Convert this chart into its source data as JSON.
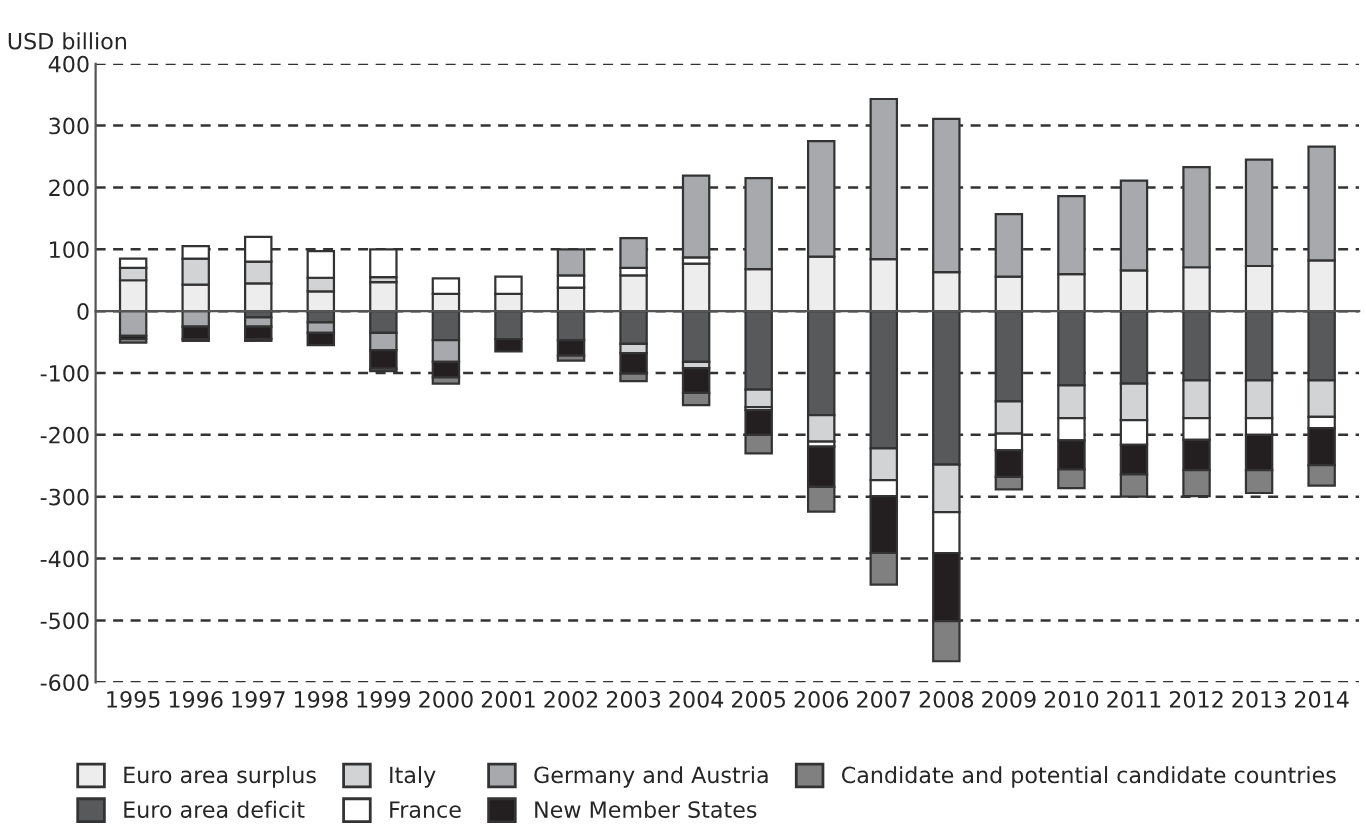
{
  "chart_data": {
    "type": "bar",
    "stacked": true,
    "ylabel": "USD billion",
    "categories": [
      "1995",
      "1996",
      "1997",
      "1998",
      "1999",
      "2000",
      "2001",
      "2002",
      "2003",
      "2004",
      "2005",
      "2006",
      "2007",
      "2008",
      "2009",
      "2010",
      "2011",
      "2012",
      "2013",
      "2014"
    ],
    "series": [
      {
        "name": "Euro area surplus",
        "color": "#ededed",
        "values": [
          50,
          43,
          45,
          32,
          47,
          28,
          28,
          38,
          58,
          77,
          68,
          88,
          84,
          63,
          56,
          60,
          66,
          71,
          73,
          82
        ]
      },
      {
        "name": "Euro area deficit",
        "color": "#58595b",
        "values": [
          0,
          0,
          -10,
          -18,
          -35,
          -47,
          -45,
          -47,
          -53,
          -82,
          -127,
          -168,
          -222,
          -248,
          -146,
          -120,
          -117,
          -112,
          -112,
          -112
        ]
      },
      {
        "name": "Italy",
        "color": "#d1d3d4",
        "values": [
          20,
          42,
          35,
          22,
          8,
          0,
          0,
          0,
          -15,
          -10,
          -28,
          -43,
          -51,
          -77,
          -52,
          -53,
          -59,
          -61,
          -61,
          -59
        ]
      },
      {
        "name": "France",
        "color": "#ffffff",
        "values": [
          15,
          20,
          40,
          43,
          45,
          25,
          28,
          20,
          12,
          10,
          -5,
          -8,
          -26,
          -66,
          -27,
          -36,
          -40,
          -35,
          -27,
          -18
        ]
      },
      {
        "name": "Germany and Austria",
        "color": "#a7a9ac",
        "values": [
          -40,
          -25,
          -15,
          -17,
          -28,
          -35,
          0,
          42,
          48,
          132,
          147,
          187,
          259,
          248,
          101,
          126,
          145,
          162,
          172,
          184
        ]
      },
      {
        "name": "New Member States",
        "color": "#231f20",
        "values": [
          -5,
          -20,
          -20,
          -20,
          -30,
          -25,
          -20,
          -25,
          -33,
          -40,
          -40,
          -65,
          -92,
          -110,
          -43,
          -47,
          -48,
          -49,
          -57,
          -60
        ]
      },
      {
        "name": "Candidate and potential candidate countries",
        "color": "#808080",
        "values": [
          -6,
          -3,
          -3,
          0,
          -4,
          -10,
          0,
          -8,
          -12,
          -20,
          -30,
          -40,
          -51,
          -65,
          -20,
          -30,
          -36,
          -42,
          -37,
          -33
        ]
      }
    ],
    "ylim": [
      -600,
      400
    ],
    "yticks": [
      -600,
      -500,
      -400,
      -300,
      -200,
      -100,
      0,
      100,
      200,
      300,
      400
    ],
    "grid": "y",
    "legend": "bottom"
  }
}
